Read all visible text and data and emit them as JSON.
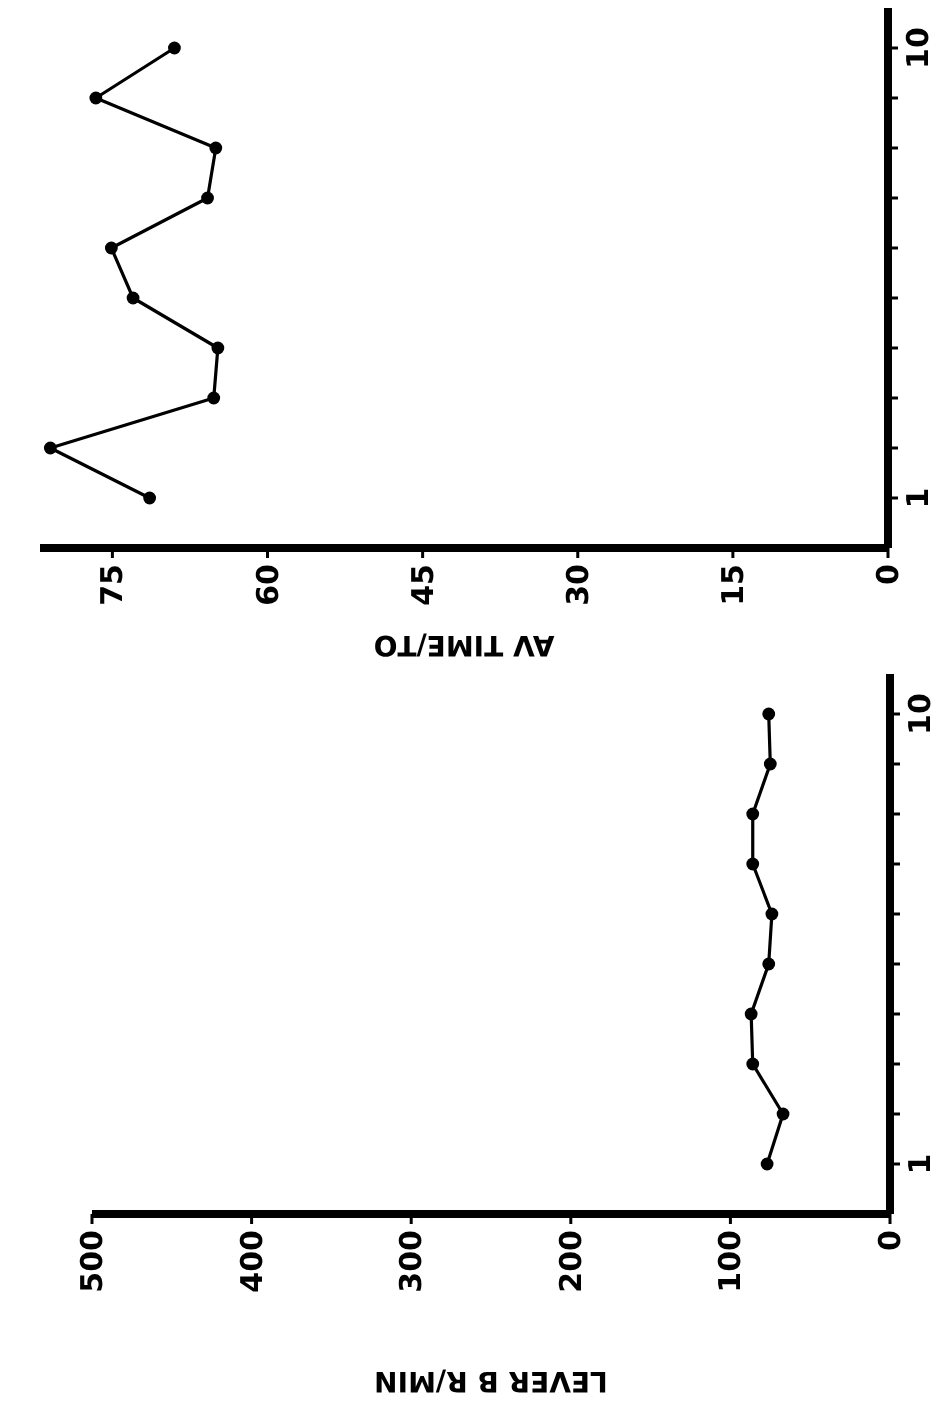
{
  "chart_data": [
    {
      "type": "line",
      "xlabel": "AV TIME/TO",
      "marker": "circle",
      "line_style": "solid",
      "ylim": [
        0,
        10.8
      ],
      "yticks": [
        {
          "value": 1,
          "label": "1"
        },
        {
          "value": 2,
          "label": null
        },
        {
          "value": 3,
          "label": null
        },
        {
          "value": 4,
          "label": null
        },
        {
          "value": 5,
          "label": null
        },
        {
          "value": 6,
          "label": null
        },
        {
          "value": 7,
          "label": null
        },
        {
          "value": 8,
          "label": null
        },
        {
          "value": 9,
          "label": null
        },
        {
          "value": 10,
          "label": "10"
        }
      ],
      "xlim": [
        82,
        0
      ],
      "xticks": [
        75,
        60,
        45,
        30,
        15,
        0
      ],
      "grid": false,
      "series": [
        {
          "color": "#000000",
          "x": [
            71.4,
            81,
            65.2,
            64.8,
            73,
            75.1,
            65.8,
            65,
            76.6,
            69
          ],
          "values": [
            1,
            2,
            3,
            4,
            5,
            6,
            7,
            8,
            9,
            10
          ]
        }
      ]
    },
    {
      "type": "line",
      "xlabel": "LEVER B R/MIN",
      "marker": "circle",
      "line_style": "solid",
      "ylim": [
        0,
        10.8
      ],
      "yticks": [
        {
          "value": 1,
          "label": "1"
        },
        {
          "value": 2,
          "label": null
        },
        {
          "value": 3,
          "label": null
        },
        {
          "value": 4,
          "label": null
        },
        {
          "value": 5,
          "label": null
        },
        {
          "value": 6,
          "label": null
        },
        {
          "value": 7,
          "label": null
        },
        {
          "value": 8,
          "label": null
        },
        {
          "value": 9,
          "label": null
        },
        {
          "value": 10,
          "label": "10"
        }
      ],
      "xlim": [
        500,
        0
      ],
      "xticks": [
        500,
        400,
        300,
        200,
        100,
        0
      ],
      "grid": false,
      "series": [
        {
          "color": "#000000",
          "x": [
            77,
            67,
            86,
            87,
            76,
            74,
            86,
            86,
            75,
            76
          ],
          "values": [
            1,
            2,
            3,
            4,
            5,
            6,
            7,
            8,
            9,
            10
          ]
        }
      ]
    }
  ]
}
